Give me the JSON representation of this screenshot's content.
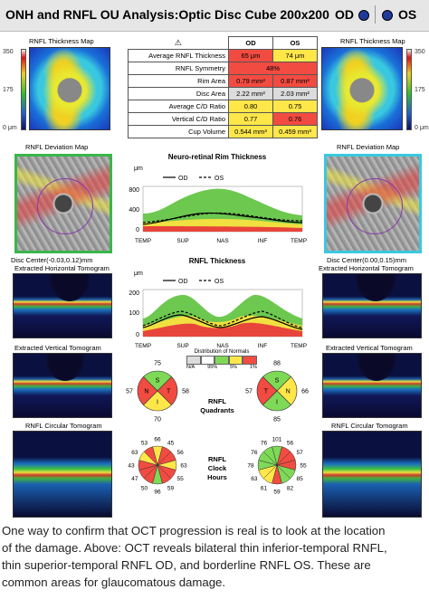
{
  "header": {
    "title": "ONH and RNFL OU Analysis:Optic Disc Cube 200x200",
    "od_label": "OD",
    "os_label": "OS",
    "eye_color": "#203a9c"
  },
  "thickness_map": {
    "label": "RNFL Thickness Map",
    "scale_ticks": [
      "350",
      "175",
      "0 μm"
    ]
  },
  "param_table": {
    "headers": [
      "OD",
      "OS"
    ],
    "rows": [
      {
        "label": "Average RNFL Thickness",
        "od": "65 μm",
        "os": "74 μm",
        "od_class": "red",
        "os_class": "yellow"
      },
      {
        "label": "RNFL Symmetry",
        "merged": "48%",
        "merged_class": "red"
      },
      {
        "label": "Rim Area",
        "od": "0.79 mm²",
        "os": "0.87 mm²",
        "od_class": "red",
        "os_class": "red"
      },
      {
        "label": "Disc Area",
        "od": "2.22 mm²",
        "os": "2.03 mm²",
        "od_class": "grey",
        "os_class": "grey"
      },
      {
        "label": "Average C/D Ratio",
        "od": "0.80",
        "os": "0.75",
        "od_class": "yellow",
        "os_class": "yellow"
      },
      {
        "label": "Vertical C/D Ratio",
        "od": "0.77",
        "os": "0.76",
        "od_class": "yellow",
        "os_class": "red"
      },
      {
        "label": "Cup Volume",
        "od": "0.544 mm³",
        "os": "0.459 mm³",
        "od_class": "yellow",
        "os_class": "yellow"
      }
    ]
  },
  "deviation_map": {
    "label": "RNFL Deviation Map",
    "od_center": "Disc Center(-0.03,0.12)mm",
    "os_center": "Disc Center(0.00,0.15)mm"
  },
  "tomograms": {
    "horizontal": "Extracted Horizontal Tomogram",
    "vertical": "Extracted Vertical Tomogram",
    "circular": "RNFL Circular Tomogram"
  },
  "rim_chart": {
    "title": "Neuro-retinal Rim Thickness",
    "unit": "μm",
    "legend_od": "OD",
    "legend_os": "OS",
    "yticks": [
      "800",
      "400",
      "0"
    ],
    "xticks": [
      "TEMP",
      "SUP",
      "NAS",
      "INF",
      "TEMP"
    ]
  },
  "rnfl_chart": {
    "title": "RNFL Thickness",
    "unit": "μm",
    "legend_od": "OD",
    "legend_os": "OS",
    "yticks": [
      "200",
      "100",
      "0"
    ],
    "xticks": [
      "TEMP",
      "SUP",
      "NAS",
      "INF",
      "TEMP"
    ]
  },
  "normative_legend": {
    "title": "Distribution of Normals",
    "labels": [
      "N/A",
      "95%",
      "5%",
      "1%"
    ]
  },
  "quadrants": {
    "label_line1": "RNFL",
    "label_line2": "Quadrants",
    "od": {
      "S": "75",
      "N": "57",
      "I": "70",
      "T": "58"
    },
    "os": {
      "S": "88",
      "N": "66",
      "I": "85",
      "T": "57"
    }
  },
  "clock": {
    "label_line1": "RNFL",
    "label_line2": "Clock",
    "label_line3": "Hours",
    "od": [
      "66",
      "45",
      "56",
      "63",
      "55",
      "59",
      "96",
      "50",
      "47",
      "43",
      "63",
      "53"
    ],
    "os": [
      "101",
      "56",
      "57",
      "55",
      "85",
      "82",
      "59",
      "61",
      "63",
      "78",
      "76",
      "76"
    ]
  },
  "caption": {
    "lines": [
      "One way to confirm that OCT progression is real is to look at the location",
      "of the damage. Above: OCT reveals bilateral thin inferior-temporal RNFL,",
      "thin superior-temporal RNFL OD, and borderline RNFL OS. These are",
      "common areas for glaucomatous damage."
    ]
  }
}
